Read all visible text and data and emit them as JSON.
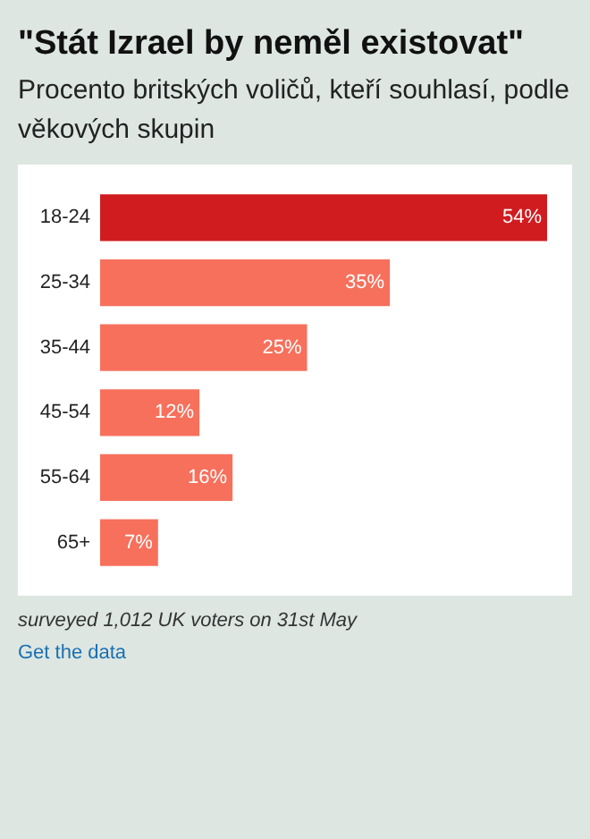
{
  "chart_data": {
    "type": "bar",
    "orientation": "horizontal",
    "title": "\"Stát Izrael by neměl existovat\"",
    "subtitle": "Procento britských voličů, kteří souhlasí, podle věkových skupin",
    "categories": [
      "18-24",
      "25-34",
      "35-44",
      "45-54",
      "55-64",
      "65+"
    ],
    "values": [
      54,
      35,
      25,
      12,
      16,
      7
    ],
    "colors": [
      "#d11c1f",
      "#f7705c",
      "#f7705c",
      "#f7705c",
      "#f7705c",
      "#f7705c"
    ],
    "value_labels": [
      "54%",
      "35%",
      "25%",
      "12%",
      "16%",
      "7%"
    ],
    "annotations": [
      "surveyed 1,012 UK voters on 31st May",
      "Get the data"
    ],
    "data_labels": false
  }
}
